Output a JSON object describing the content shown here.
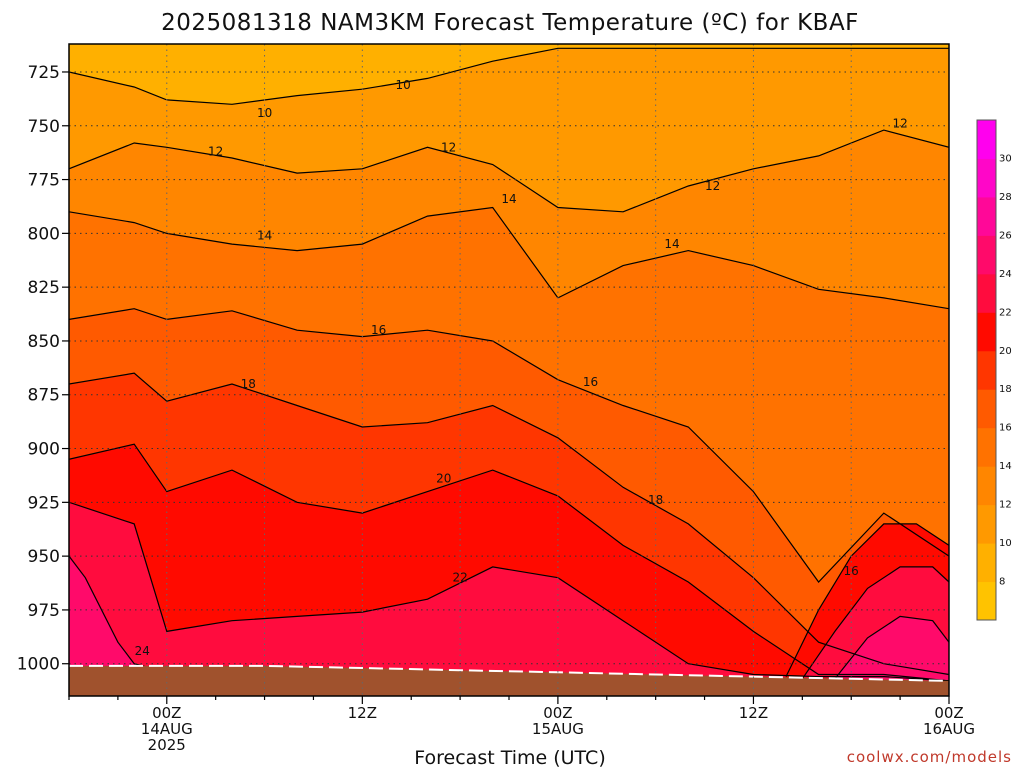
{
  "colors": {
    "ground": "#A0522D",
    "contour_line": "#000000",
    "credit": "#C0392B"
  },
  "chart_data": {
    "type": "heatmap",
    "title": "2025081318 NAM3KM Forecast Temperature (ºC) for KBAF",
    "xlabel": "Forecast Time (UTC)",
    "ylabel": "",
    "y_axis": {
      "ticks": [
        "725",
        "750",
        "775",
        "800",
        "825",
        "850",
        "875",
        "900",
        "925",
        "950",
        "975",
        "1000"
      ],
      "range": [
        712,
        1015
      ],
      "inverted": true
    },
    "x_axis": {
      "range_hours": [
        18,
        72
      ],
      "ticks": [
        {
          "hour": 24,
          "line1": "00Z",
          "line2": "14AUG",
          "line3": "2025"
        },
        {
          "hour": 36,
          "line1": "12Z",
          "line2": "",
          "line3": ""
        },
        {
          "hour": 48,
          "line1": "00Z",
          "line2": "15AUG",
          "line3": ""
        },
        {
          "hour": 60,
          "line1": "12Z",
          "line2": "",
          "line3": ""
        },
        {
          "hour": 72,
          "line1": "00Z",
          "line2": "16AUG",
          "line3": ""
        }
      ]
    },
    "grid": true,
    "colorbar": {
      "placement": "right",
      "levels": [
        6,
        8,
        10,
        12,
        14,
        16,
        18,
        20,
        22,
        24,
        26,
        28,
        30,
        32
      ],
      "tick_labels": [
        "8",
        "10",
        "12",
        "14",
        "16",
        "18",
        "20",
        "22",
        "24",
        "26",
        "28",
        "30"
      ],
      "colors": [
        "#FFC300",
        "#FFB000",
        "#FF9900",
        "#FF8600",
        "#FF7200",
        "#FF5A00",
        "#FF3600",
        "#FF0A00",
        "#FF0C3E",
        "#FF0A6A",
        "#FF0898",
        "#FF06C8",
        "#FF00EE"
      ]
    },
    "contour_labels": [
      {
        "text": "10",
        "hour": 38.5,
        "pressure": 731
      },
      {
        "text": "10",
        "hour": 30.0,
        "pressure": 744
      },
      {
        "text": "12",
        "hour": 27.0,
        "pressure": 762
      },
      {
        "text": "12",
        "hour": 41.3,
        "pressure": 760
      },
      {
        "text": "12",
        "hour": 57.5,
        "pressure": 778
      },
      {
        "text": "12",
        "hour": 69.0,
        "pressure": 749
      },
      {
        "text": "14",
        "hour": 30.0,
        "pressure": 801
      },
      {
        "text": "14",
        "hour": 45.0,
        "pressure": 784
      },
      {
        "text": "14",
        "hour": 55.0,
        "pressure": 805
      },
      {
        "text": "16",
        "hour": 37.0,
        "pressure": 845
      },
      {
        "text": "16",
        "hour": 50.0,
        "pressure": 869
      },
      {
        "text": "16",
        "hour": 66.0,
        "pressure": 957
      },
      {
        "text": "18",
        "hour": 29.0,
        "pressure": 870
      },
      {
        "text": "18",
        "hour": 54.0,
        "pressure": 924
      },
      {
        "text": "20",
        "hour": 41.0,
        "pressure": 914
      },
      {
        "text": "22",
        "hour": 42.0,
        "pressure": 960
      },
      {
        "text": "24",
        "hour": 22.5,
        "pressure": 994
      }
    ],
    "series": [
      {
        "hours": [
          18,
          22,
          24,
          28,
          32,
          36,
          40,
          44,
          48,
          52,
          56,
          60,
          64,
          68,
          72
        ],
        "pressures": [
          725,
          732,
          738,
          740,
          736,
          733,
          728,
          720,
          714,
          714,
          714,
          714,
          714,
          714,
          714
        ],
        "value": 10
      },
      {
        "hours": [
          18,
          22,
          24,
          28,
          32,
          36,
          40,
          44,
          48,
          52,
          56,
          60,
          64,
          68,
          72
        ],
        "pressures": [
          770,
          758,
          760,
          765,
          772,
          770,
          760,
          768,
          788,
          790,
          778,
          770,
          764,
          752,
          760
        ],
        "value": 12
      },
      {
        "hours": [
          18,
          22,
          24,
          28,
          32,
          36,
          40,
          44,
          48,
          52,
          56,
          60,
          64,
          68,
          72
        ],
        "pressures": [
          790,
          795,
          800,
          805,
          808,
          805,
          792,
          788,
          830,
          815,
          808,
          815,
          826,
          830,
          835
        ],
        "value": 14
      },
      {
        "hours": [
          18,
          22,
          24,
          28,
          32,
          36,
          40,
          44,
          48,
          52,
          56,
          60,
          64,
          68,
          72
        ],
        "pressures": [
          840,
          835,
          840,
          836,
          845,
          848,
          845,
          850,
          868,
          880,
          890,
          920,
          962,
          930,
          950
        ],
        "value": 16
      },
      {
        "hours": [
          18,
          22,
          24,
          28,
          32,
          36,
          40,
          44,
          48,
          52,
          56,
          60,
          64,
          68,
          72
        ],
        "pressures": [
          870,
          865,
          878,
          870,
          880,
          890,
          888,
          880,
          895,
          918,
          935,
          960,
          990,
          1000,
          1005
        ],
        "value": 18
      },
      {
        "hours": [
          18,
          22,
          24,
          28,
          32,
          36,
          40,
          44,
          48,
          52,
          56,
          60,
          64,
          68,
          72
        ],
        "pressures": [
          905,
          898,
          920,
          910,
          925,
          930,
          920,
          910,
          922,
          945,
          962,
          985,
          1005,
          1005,
          1008
        ],
        "value": 20
      },
      {
        "hours": [
          18,
          22,
          24,
          28,
          32,
          36,
          40,
          44,
          48,
          52,
          56,
          60,
          64,
          68,
          72
        ],
        "pressures": [
          925,
          935,
          985,
          980,
          978,
          976,
          970,
          955,
          960,
          980,
          1000,
          1005,
          1006,
          1006,
          1008
        ],
        "value": 22
      },
      {
        "hours": [
          18,
          19,
          21,
          22,
          23,
          24,
          28,
          32,
          36,
          40,
          44,
          48,
          52,
          56,
          60,
          64,
          68,
          72
        ],
        "pressures": [
          950,
          960,
          990,
          1000,
          1002,
          1002,
          1002,
          1002,
          1003,
          1003,
          1004,
          1005,
          1006,
          1007,
          1007,
          1008,
          1008,
          1009
        ],
        "value": 24
      },
      {
        "hours": [
          62,
          64,
          66,
          68,
          70,
          72
        ],
        "pressures": [
          1006,
          975,
          950,
          935,
          935,
          945
        ],
        "value": 20
      },
      {
        "hours": [
          63,
          65,
          67,
          69,
          71,
          72
        ],
        "pressures": [
          1007,
          985,
          965,
          955,
          955,
          962
        ],
        "value": 22
      },
      {
        "hours": [
          65,
          67,
          69,
          71,
          72
        ],
        "pressures": [
          1007,
          988,
          978,
          980,
          990
        ],
        "value": 24
      }
    ],
    "ground": {
      "hours": [
        18,
        24,
        30,
        36,
        42,
        48,
        54,
        60,
        66,
        72
      ],
      "pressures": [
        1001,
        1001,
        1001,
        1002,
        1003,
        1004,
        1005,
        1006,
        1007,
        1008
      ]
    }
  },
  "credit": "coolwx.com/models"
}
